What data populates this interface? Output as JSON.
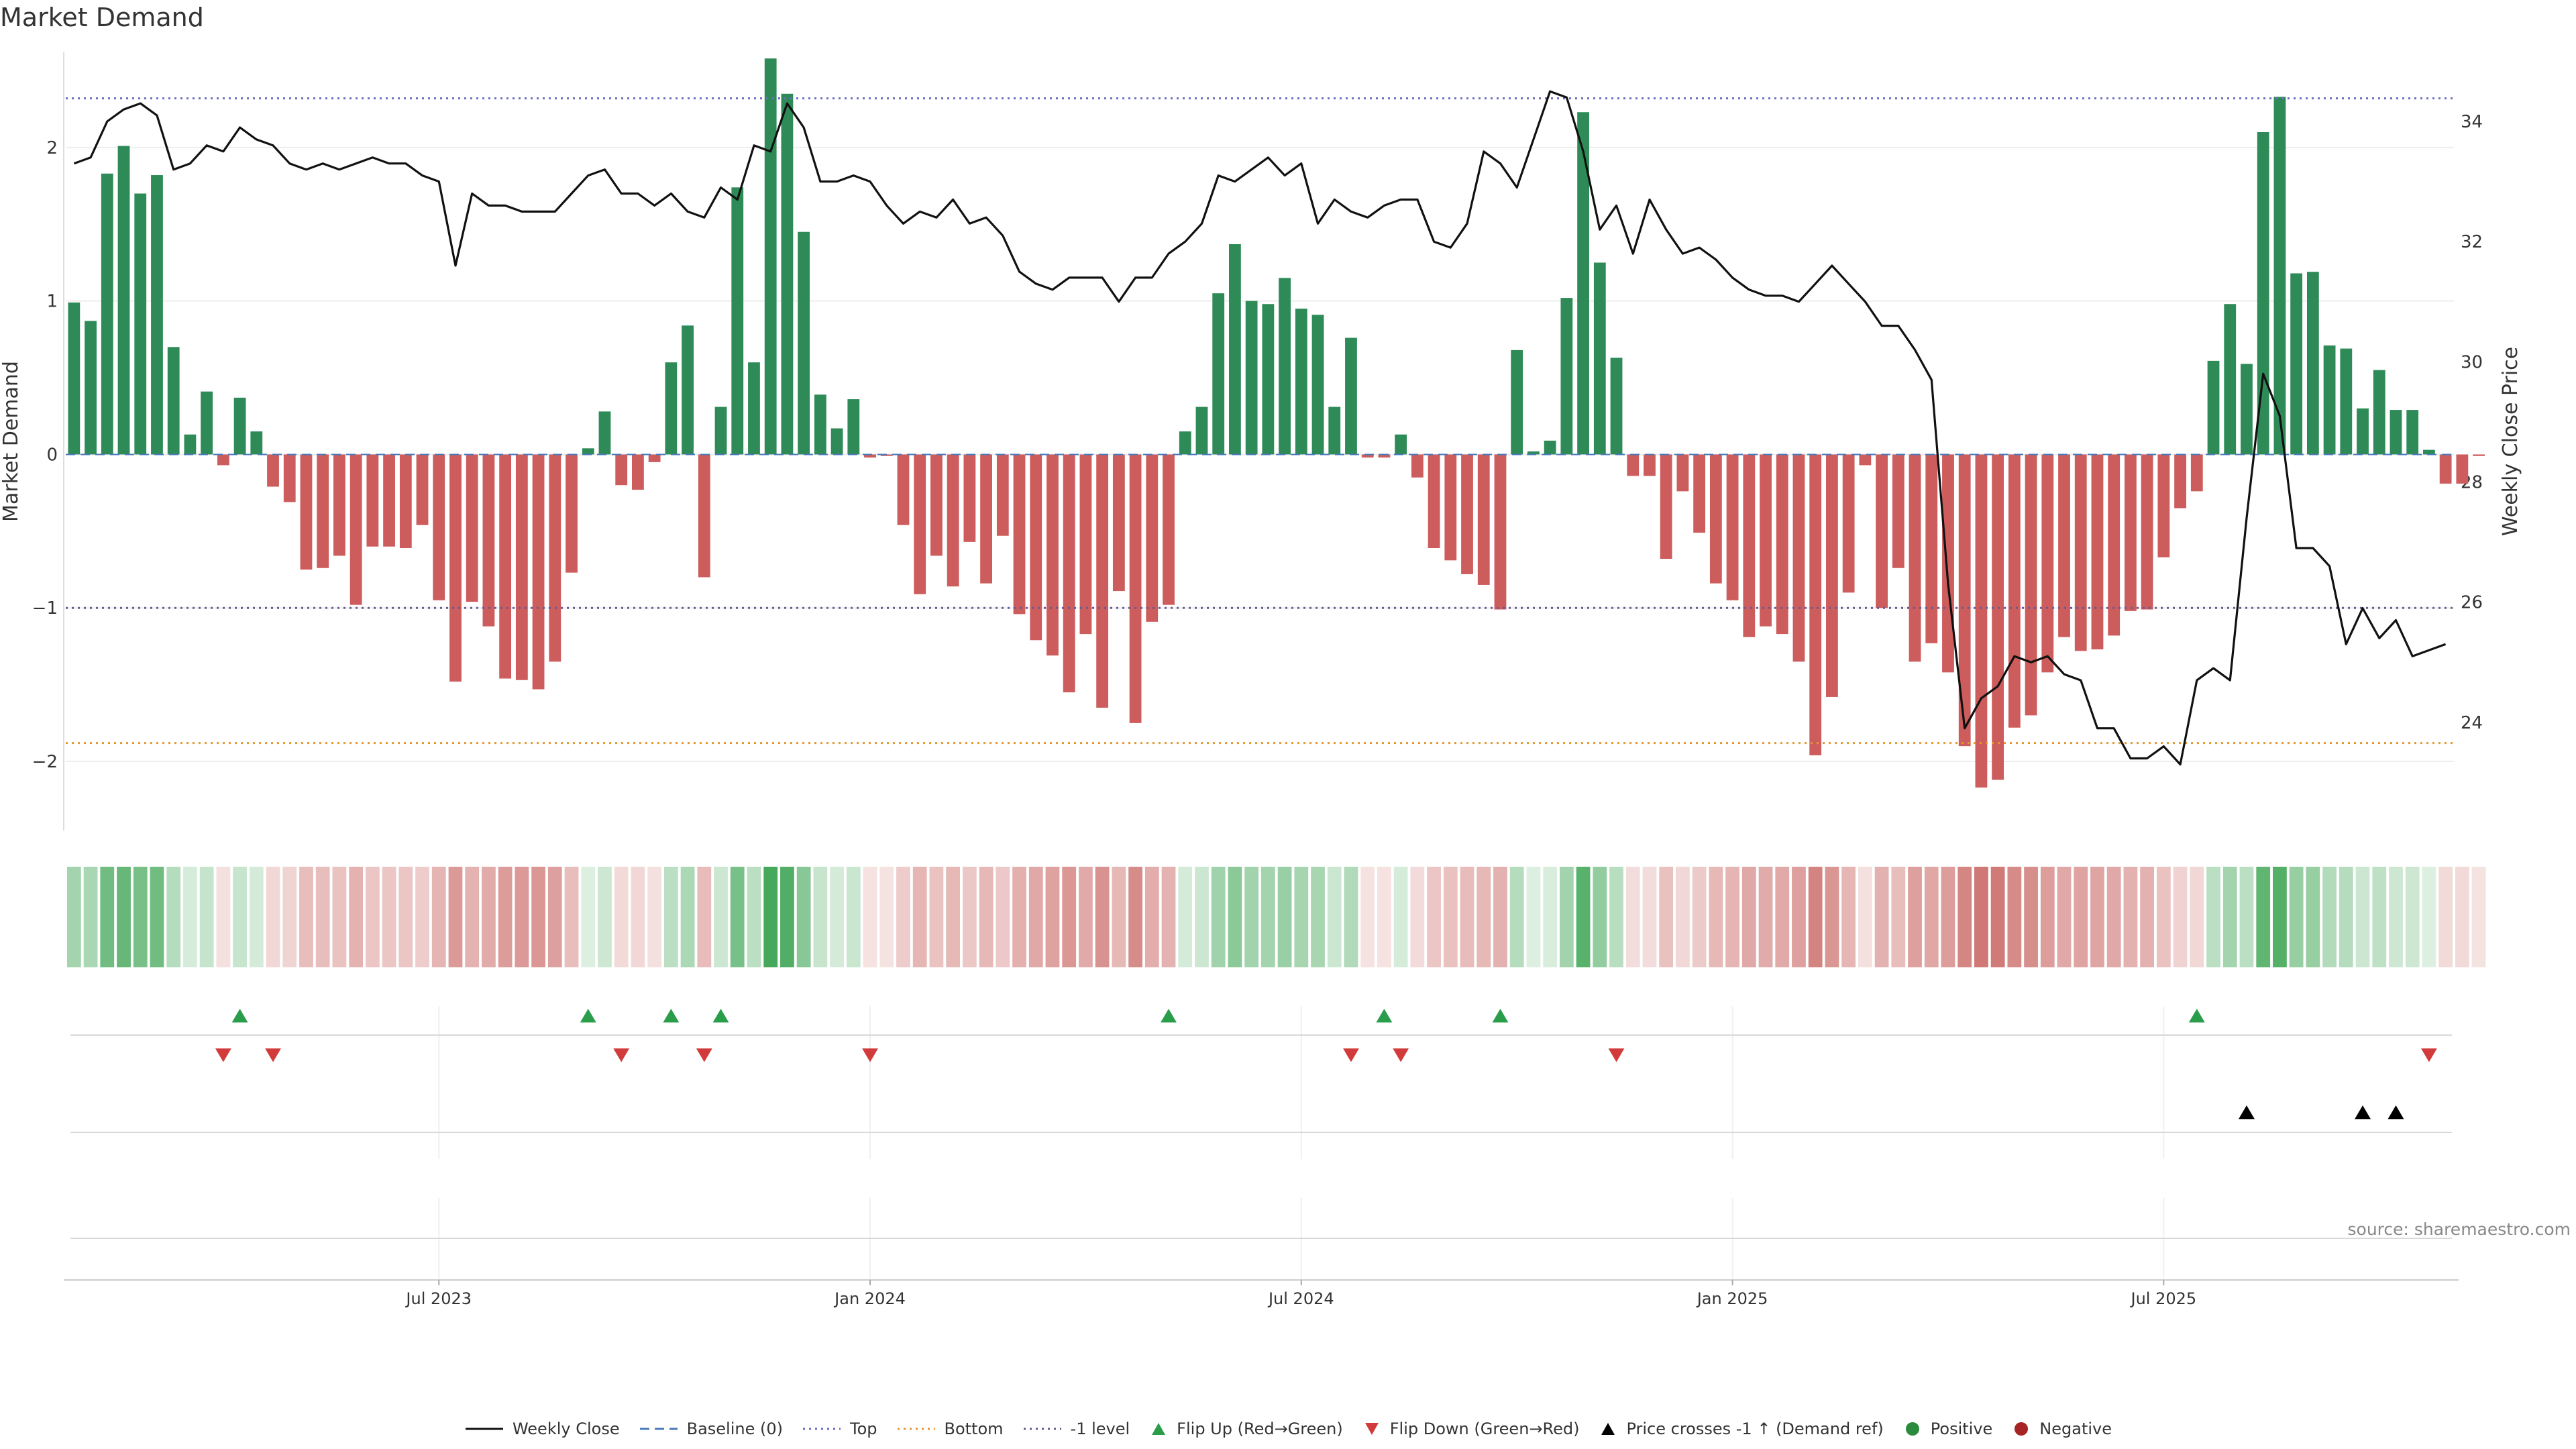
{
  "title": "Market Demand",
  "source": "source: sharemaestro.com",
  "chart_data": {
    "type": "bar",
    "title": "Market Demand",
    "ylabel_left": "Market Demand",
    "ylabel_right": "Weekly Close Price",
    "y_left_range": [
      -2.45,
      2.62
    ],
    "y_left_ticks": [
      -2,
      -1,
      0,
      1,
      2
    ],
    "y_left_tick_labels": [
      "−2",
      "−1",
      "0",
      "1",
      "2"
    ],
    "y_right_range": [
      22.2,
      35.15
    ],
    "y_right_ticks": [
      24,
      26,
      28,
      30,
      32,
      34
    ],
    "x_ticks": [
      {
        "index": 22,
        "label": "Jul 2023"
      },
      {
        "index": 48,
        "label": "Jan 2024"
      },
      {
        "index": 74,
        "label": "Jul 2024"
      },
      {
        "index": 100,
        "label": "Jan 2025"
      },
      {
        "index": 126,
        "label": "Jul 2025"
      }
    ],
    "x_count": 144,
    "reference_lines": {
      "top": 2.32,
      "bottom": -1.88,
      "minus_one": -1.0,
      "baseline": 0
    },
    "demand": [
      0.99,
      0.87,
      1.83,
      2.01,
      1.7,
      1.82,
      0.7,
      0.13,
      0.41,
      -0.07,
      0.37,
      0.15,
      -0.21,
      -0.31,
      -0.75,
      -0.74,
      -0.66,
      -0.98,
      -0.6,
      -0.6,
      -0.61,
      -0.46,
      -0.95,
      -1.48,
      -0.96,
      -1.12,
      -1.46,
      -1.47,
      -1.53,
      -1.35,
      -0.77,
      0.04,
      0.28,
      -0.2,
      -0.23,
      -0.05,
      0.6,
      0.84,
      -0.8,
      0.31,
      1.74,
      0.6,
      2.58,
      2.35,
      1.45,
      0.39,
      0.17,
      0.36,
      -0.02,
      -0.01,
      -0.46,
      -0.91,
      -0.66,
      -0.86,
      -0.57,
      -0.84,
      -0.53,
      -1.04,
      -1.21,
      -1.31,
      -1.55,
      -1.17,
      -1.65,
      -0.89,
      -1.75,
      -1.09,
      -0.98,
      0.15,
      0.31,
      1.05,
      1.37,
      1.0,
      0.98,
      1.15,
      0.95,
      0.91,
      0.31,
      0.76,
      -0.02,
      -0.02,
      0.13,
      -0.15,
      -0.61,
      -0.69,
      -0.78,
      -0.85,
      -1.01,
      0.68,
      0.02,
      0.09,
      1.02,
      2.23,
      1.25,
      0.63,
      -0.14,
      -0.14,
      -0.68,
      -0.24,
      -0.51,
      -0.84,
      -0.95,
      -1.19,
      -1.12,
      -1.17,
      -1.35,
      -1.96,
      -1.58,
      -0.9,
      -0.07,
      -1.0,
      -0.74,
      -1.35,
      -1.23,
      -1.42,
      -1.9,
      -2.17,
      -2.12,
      -1.78,
      -1.7,
      -1.42,
      -1.19,
      -1.28,
      -1.27,
      -1.18,
      -1.02,
      -1.01,
      -0.67,
      -0.35,
      -0.24,
      0.61,
      0.98,
      0.59,
      2.1,
      2.33,
      1.18,
      1.19,
      0.71,
      0.69,
      0.3,
      0.55,
      0.29,
      0.29,
      0.03,
      -0.19,
      -0.19,
      -0.01
    ],
    "weekly_close": [
      33.3,
      33.4,
      34.0,
      34.2,
      34.3,
      34.1,
      33.2,
      33.3,
      33.6,
      33.5,
      33.9,
      33.7,
      33.6,
      33.3,
      33.2,
      33.3,
      33.2,
      33.3,
      33.4,
      33.3,
      33.3,
      33.1,
      33.0,
      31.6,
      32.8,
      32.6,
      32.6,
      32.5,
      32.5,
      32.5,
      32.8,
      33.1,
      33.2,
      32.8,
      32.8,
      32.6,
      32.8,
      32.5,
      32.4,
      32.9,
      32.7,
      33.6,
      33.5,
      34.3,
      33.9,
      33.0,
      33.0,
      33.1,
      33.0,
      32.6,
      32.3,
      32.5,
      32.4,
      32.7,
      32.3,
      32.4,
      32.1,
      31.5,
      31.3,
      31.2,
      31.4,
      31.4,
      31.4,
      31.0,
      31.4,
      31.4,
      31.8,
      32.0,
      32.3,
      33.1,
      33.0,
      33.2,
      33.4,
      33.1,
      33.3,
      32.3,
      32.7,
      32.5,
      32.4,
      32.6,
      32.7,
      32.7,
      32.0,
      31.9,
      32.3,
      33.5,
      33.3,
      32.9,
      33.7,
      34.5,
      34.4,
      33.5,
      32.2,
      32.6,
      31.8,
      32.7,
      32.2,
      31.8,
      31.9,
      31.7,
      31.4,
      31.2,
      31.1,
      31.1,
      31.0,
      31.3,
      31.6,
      31.3,
      31.0,
      30.6,
      30.6,
      30.2,
      29.7,
      26.3,
      23.9,
      24.4,
      24.6,
      25.1,
      25.0,
      25.1,
      24.8,
      24.7,
      23.9,
      23.9,
      23.4,
      23.4,
      23.6,
      23.3,
      24.7,
      24.9,
      24.7,
      27.4,
      29.8,
      29.1,
      26.9,
      26.9,
      26.6,
      25.3,
      25.9,
      25.4,
      25.7,
      25.1,
      25.2,
      25.3
    ],
    "flip_up": [
      10,
      31,
      36,
      39,
      66,
      79,
      86,
      128
    ],
    "flip_down": [
      9,
      12,
      33,
      38,
      48,
      77,
      80,
      93,
      142
    ],
    "price_cross_up": [
      131,
      138,
      140
    ],
    "legend": [
      {
        "label": "Weekly Close",
        "kind": "line",
        "color": "#111111",
        "dash": ""
      },
      {
        "label": "Baseline (0)",
        "kind": "line",
        "color": "#4a7ab8",
        "dash": "14,8"
      },
      {
        "label": "Top",
        "kind": "line",
        "color": "#6c6cc0",
        "dash": "3,6"
      },
      {
        "label": "Bottom",
        "kind": "line",
        "color": "#e8962c",
        "dash": "3,6"
      },
      {
        "label": "-1 level",
        "kind": "line",
        "color": "#6a5a90",
        "dash": "3,6"
      },
      {
        "label": "Flip Up (Red→Green)",
        "kind": "tri-up",
        "color": "#2a9d4b"
      },
      {
        "label": "Flip Down (Green→Red)",
        "kind": "tri-down",
        "color": "#d23b3b"
      },
      {
        "label": "Price crosses -1 ↑ (Demand ref)",
        "kind": "tri-up",
        "color": "#000000"
      },
      {
        "label": "Positive",
        "kind": "dot",
        "color": "#2a8a3e"
      },
      {
        "label": "Negative",
        "kind": "dot",
        "color": "#a82424"
      }
    ],
    "colors": {
      "positive_bar": "#2e8b57",
      "negative_bar": "#cd5c5c",
      "heat_positive": "#45a85a",
      "heat_negative": "#c86460"
    }
  }
}
